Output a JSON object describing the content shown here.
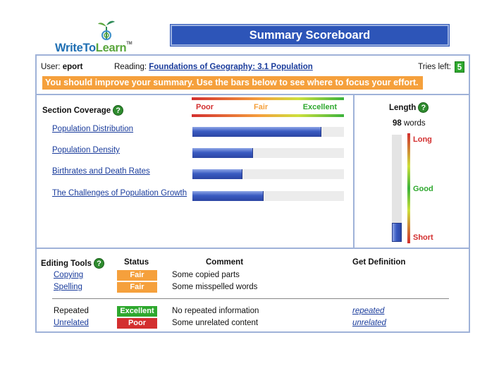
{
  "logo": {
    "text_a": "WriteTo",
    "text_b": "Learn",
    "tm": "TM"
  },
  "title": "Summary Scoreboard",
  "header": {
    "user_label": "User:",
    "user_name": "eport",
    "reading_label": "Reading:",
    "reading_link": "Foundations of Geography: 3.1 Population",
    "tries_label": "Tries left:",
    "tries_value": "5"
  },
  "banner": "You should improve your summary. Use the bars below to see where to focus your effort.",
  "coverage": {
    "title": "Section Coverage",
    "help": "?",
    "scale": {
      "poor": "Poor",
      "fair": "Fair",
      "excellent": "Excellent"
    },
    "sections": [
      {
        "label": "Population Distribution",
        "score": 0.85
      },
      {
        "label": "Population Density",
        "score": 0.4
      },
      {
        "label": "Birthrates and Death Rates",
        "score": 0.33
      },
      {
        "label": "The Challenges of Population Growth",
        "score": 0.47
      }
    ]
  },
  "length": {
    "title": "Length",
    "help": "?",
    "words_count": "98",
    "words_unit": "words",
    "fill_fraction": 0.18,
    "long": "Long",
    "good": "Good",
    "short": "Short"
  },
  "editing": {
    "title": "Editing Tools",
    "help": "?",
    "status_header": "Status",
    "comment_header": "Comment",
    "definition_header": "Get Definition",
    "rows": [
      {
        "tool": "Copying",
        "status": "Fair",
        "status_color": "#f5a03c",
        "comment": "Some copied parts",
        "definition": ""
      },
      {
        "tool": "Spelling",
        "status": "Fair",
        "status_color": "#f5a03c",
        "comment": "Some misspelled words",
        "definition": ""
      },
      {
        "tool": "Repeated",
        "status": "Excellent",
        "status_color": "#2ea82e",
        "comment": "No repeated information",
        "definition": "repeated"
      },
      {
        "tool": "Unrelated",
        "status": "Poor",
        "status_color": "#d32f2f",
        "comment": "Some unrelated content",
        "definition": "unrelated"
      }
    ]
  }
}
